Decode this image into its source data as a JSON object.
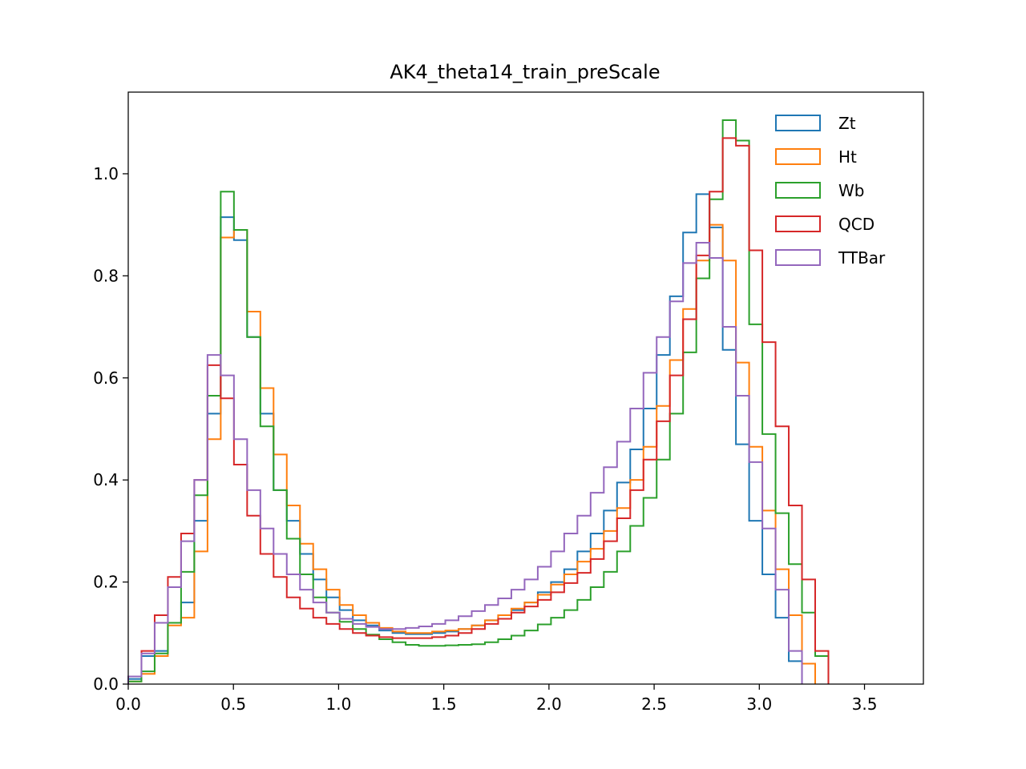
{
  "chart_data": {
    "type": "line",
    "title": "AK4_theta14_train_preScale",
    "xlabel": "",
    "ylabel": "",
    "xlim": [
      0.0,
      3.78
    ],
    "ylim": [
      0.0,
      1.16
    ],
    "grid": false,
    "legend_position": "top-right",
    "x_ticks": [
      "0.0",
      "0.5",
      "1.0",
      "1.5",
      "2.0",
      "2.5",
      "3.0",
      "3.5"
    ],
    "y_ticks": [
      "0.0",
      "0.2",
      "0.4",
      "0.6",
      "0.8",
      "1.0"
    ],
    "x_tick_values": [
      0.0,
      0.5,
      1.0,
      1.5,
      2.0,
      2.5,
      3.0,
      3.5
    ],
    "y_tick_values": [
      0.0,
      0.2,
      0.4,
      0.6,
      0.8,
      1.0
    ],
    "bin_edges_start": 0.0,
    "bin_width": 0.0628,
    "series": [
      {
        "name": "Zt",
        "color": "#1f77b4",
        "values": [
          0.01,
          0.055,
          0.065,
          0.12,
          0.16,
          0.32,
          0.53,
          0.915,
          0.87,
          0.68,
          0.53,
          0.38,
          0.32,
          0.255,
          0.205,
          0.17,
          0.145,
          0.125,
          0.115,
          0.105,
          0.1,
          0.098,
          0.098,
          0.1,
          0.103,
          0.108,
          0.115,
          0.125,
          0.135,
          0.145,
          0.16,
          0.18,
          0.2,
          0.225,
          0.26,
          0.295,
          0.34,
          0.395,
          0.46,
          0.54,
          0.645,
          0.76,
          0.885,
          0.96,
          0.895,
          0.655,
          0.47,
          0.32,
          0.215,
          0.13,
          0.045
        ]
      },
      {
        "name": "Ht",
        "color": "#ff7f0e",
        "values": [
          0.005,
          0.02,
          0.055,
          0.115,
          0.13,
          0.26,
          0.48,
          0.875,
          0.89,
          0.73,
          0.58,
          0.45,
          0.35,
          0.275,
          0.225,
          0.185,
          0.155,
          0.135,
          0.12,
          0.11,
          0.103,
          0.1,
          0.1,
          0.103,
          0.105,
          0.108,
          0.115,
          0.125,
          0.135,
          0.148,
          0.16,
          0.175,
          0.195,
          0.215,
          0.24,
          0.265,
          0.3,
          0.345,
          0.4,
          0.465,
          0.545,
          0.635,
          0.735,
          0.83,
          0.9,
          0.83,
          0.63,
          0.465,
          0.34,
          0.225,
          0.135,
          0.04
        ]
      },
      {
        "name": "Wb",
        "color": "#2ca02c",
        "values": [
          0.005,
          0.025,
          0.06,
          0.12,
          0.22,
          0.37,
          0.565,
          0.965,
          0.89,
          0.68,
          0.505,
          0.38,
          0.285,
          0.215,
          0.17,
          0.14,
          0.122,
          0.108,
          0.097,
          0.088,
          0.082,
          0.077,
          0.075,
          0.075,
          0.076,
          0.077,
          0.078,
          0.082,
          0.088,
          0.095,
          0.105,
          0.117,
          0.13,
          0.145,
          0.165,
          0.19,
          0.22,
          0.26,
          0.31,
          0.365,
          0.44,
          0.53,
          0.65,
          0.795,
          0.95,
          1.105,
          1.065,
          0.705,
          0.49,
          0.335,
          0.235,
          0.14,
          0.055
        ]
      },
      {
        "name": "QCD",
        "color": "#d62728",
        "values": [
          0.015,
          0.065,
          0.135,
          0.21,
          0.295,
          0.4,
          0.625,
          0.56,
          0.43,
          0.33,
          0.255,
          0.21,
          0.17,
          0.148,
          0.13,
          0.118,
          0.108,
          0.1,
          0.095,
          0.092,
          0.09,
          0.09,
          0.09,
          0.092,
          0.095,
          0.1,
          0.108,
          0.118,
          0.128,
          0.14,
          0.152,
          0.165,
          0.18,
          0.198,
          0.218,
          0.245,
          0.28,
          0.325,
          0.38,
          0.44,
          0.515,
          0.605,
          0.715,
          0.84,
          0.965,
          1.07,
          1.055,
          0.85,
          0.67,
          0.505,
          0.35,
          0.205,
          0.065
        ]
      },
      {
        "name": "TTBar",
        "color": "#9467bd",
        "values": [
          0.015,
          0.06,
          0.12,
          0.19,
          0.28,
          0.4,
          0.645,
          0.605,
          0.48,
          0.38,
          0.305,
          0.255,
          0.215,
          0.185,
          0.16,
          0.14,
          0.128,
          0.118,
          0.112,
          0.108,
          0.108,
          0.11,
          0.113,
          0.118,
          0.125,
          0.133,
          0.143,
          0.155,
          0.168,
          0.185,
          0.205,
          0.23,
          0.26,
          0.295,
          0.33,
          0.375,
          0.425,
          0.475,
          0.54,
          0.61,
          0.68,
          0.75,
          0.825,
          0.865,
          0.835,
          0.7,
          0.565,
          0.435,
          0.305,
          0.185,
          0.065
        ]
      }
    ]
  }
}
